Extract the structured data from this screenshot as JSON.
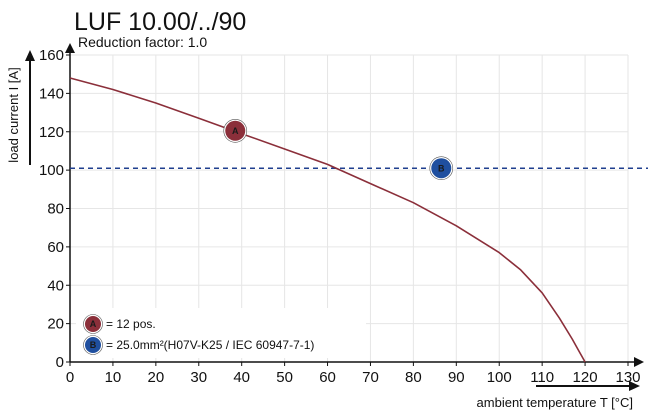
{
  "chart_data": {
    "type": "line",
    "title": "LUF 10.00/../90",
    "subtitle": "Reduction factor: 1.0",
    "xlabel": "ambient temperature T [°C]",
    "ylabel": "load current I [A]",
    "xlim": [
      0,
      130
    ],
    "ylim": [
      0,
      160
    ],
    "xticks": [
      "0",
      "10",
      "20",
      "30",
      "40",
      "50",
      "60",
      "70",
      "80",
      "90",
      "100",
      "110",
      "120",
      "130"
    ],
    "yticks": [
      "0",
      "20",
      "40",
      "60",
      "80",
      "100",
      "120",
      "140",
      "160"
    ],
    "grid": true,
    "curve": {
      "color": "#8b2f3a",
      "points": [
        [
          0,
          148
        ],
        [
          10,
          142
        ],
        [
          20,
          135
        ],
        [
          30,
          127
        ],
        [
          40,
          119
        ],
        [
          50,
          111
        ],
        [
          60,
          103
        ],
        [
          70,
          93
        ],
        [
          80,
          83
        ],
        [
          90,
          71
        ],
        [
          100,
          57
        ],
        [
          105,
          48
        ],
        [
          110,
          36
        ],
        [
          114,
          23
        ],
        [
          117,
          12
        ],
        [
          118.5,
          6
        ],
        [
          120,
          0
        ]
      ]
    },
    "reference_line": {
      "y": 101,
      "color": "#1f3f8f",
      "style": "dashed"
    },
    "markers": [
      {
        "id": "A",
        "x": 38.5,
        "y": 120.5,
        "color": "#8b2f3a"
      },
      {
        "id": "B",
        "x": 86.5,
        "y": 101,
        "color": "#1f4f9f"
      }
    ],
    "legend": {
      "placement": "bottom-left",
      "entries": [
        {
          "marker": "A",
          "color": "#8b2f3a",
          "text": "= 12 pos."
        },
        {
          "marker": "B",
          "color": "#1f4f9f",
          "text": "= 25.0mm²(H07V-K25 / IEC 60947-7-1)"
        }
      ]
    }
  }
}
